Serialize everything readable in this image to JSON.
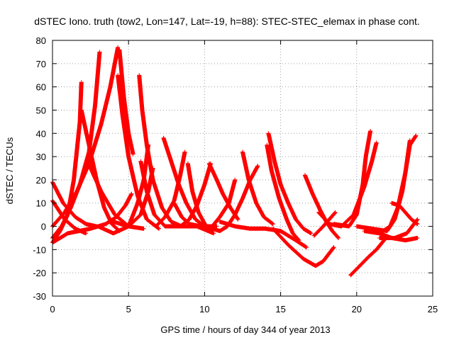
{
  "chart_data": {
    "type": "scatter",
    "title": "dSTEC Iono. truth (tow2, Lon=147, Lat=-19, h=88): STEC-STEC_elemax in phase cont.",
    "xlabel": "GPS time / hours of day 344 of year 2013",
    "ylabel": "dSTEC  / TECUs",
    "xlim": [
      0,
      25
    ],
    "ylim": [
      -30,
      80
    ],
    "xticks": [
      0,
      5,
      10,
      15,
      20,
      25
    ],
    "yticks": [
      -30,
      -20,
      -10,
      0,
      10,
      20,
      30,
      40,
      50,
      60,
      70,
      80
    ],
    "xtick_labels": [
      "0",
      "5",
      "10",
      "15",
      "20",
      "25"
    ],
    "ytick_labels": [
      "-30",
      "-20",
      "-10",
      "0",
      "10",
      "20",
      "30",
      "40",
      "50",
      "60",
      "70",
      "80"
    ],
    "grid": true,
    "marker": "plus",
    "color": "#ff0000",
    "series": [
      {
        "points": [
          [
            0,
            -7
          ],
          [
            0.5,
            -2
          ],
          [
            1.0,
            5
          ],
          [
            1.4,
            20
          ],
          [
            1.8,
            45
          ],
          [
            1.9,
            62
          ]
        ]
      },
      {
        "points": [
          [
            0,
            -5
          ],
          [
            0.6,
            0
          ],
          [
            1.2,
            8
          ],
          [
            1.8,
            18
          ],
          [
            2.4,
            32
          ],
          [
            2.8,
            52
          ],
          [
            3.1,
            75
          ]
        ]
      },
      {
        "points": [
          [
            0,
            0
          ],
          [
            0.8,
            6
          ],
          [
            1.6,
            15
          ],
          [
            2.4,
            27
          ],
          [
            3.2,
            44
          ],
          [
            3.8,
            60
          ],
          [
            4.3,
            77
          ]
        ]
      },
      {
        "points": [
          [
            0,
            19
          ],
          [
            0.7,
            10
          ],
          [
            1.5,
            4
          ],
          [
            2.2,
            1
          ],
          [
            2.9,
            0
          ]
        ]
      },
      {
        "points": [
          [
            0,
            11
          ],
          [
            0.8,
            3
          ],
          [
            1.5,
            -1
          ],
          [
            2.2,
            -3
          ]
        ]
      },
      {
        "points": [
          [
            0,
            -7
          ],
          [
            1.0,
            -3
          ],
          [
            2.5,
            -1
          ],
          [
            3.5,
            1
          ],
          [
            4.2,
            4
          ],
          [
            4.8,
            9
          ],
          [
            5.2,
            14
          ]
        ]
      },
      {
        "points": [
          [
            1.9,
            50
          ],
          [
            2.4,
            35
          ],
          [
            2.9,
            20
          ],
          [
            3.4,
            8
          ],
          [
            3.9,
            1
          ],
          [
            4.4,
            -2
          ]
        ]
      },
      {
        "points": [
          [
            2.3,
            28
          ],
          [
            3.2,
            15
          ],
          [
            4.1,
            5
          ],
          [
            5.0,
            0
          ],
          [
            6.0,
            -1
          ]
        ]
      },
      {
        "points": [
          [
            4.4,
            76
          ],
          [
            4.7,
            55
          ],
          [
            5.0,
            40
          ],
          [
            5.3,
            31
          ]
        ]
      },
      {
        "points": [
          [
            4.3,
            65
          ],
          [
            4.6,
            48
          ],
          [
            5.0,
            30
          ],
          [
            5.6,
            13
          ],
          [
            6.2,
            3
          ],
          [
            7.0,
            -1
          ]
        ]
      },
      {
        "points": [
          [
            5.7,
            65
          ],
          [
            5.9,
            50
          ],
          [
            6.2,
            35
          ],
          [
            6.6,
            20
          ],
          [
            7.2,
            8
          ],
          [
            7.8,
            2
          ],
          [
            8.5,
            0
          ]
        ]
      },
      {
        "points": [
          [
            3.0,
            0
          ],
          [
            4.0,
            -3
          ],
          [
            5.0,
            0
          ],
          [
            5.6,
            10
          ],
          [
            6.0,
            20
          ],
          [
            6.3,
            35
          ]
        ]
      },
      {
        "points": [
          [
            4.0,
            2
          ],
          [
            5.0,
            0
          ],
          [
            5.8,
            5
          ],
          [
            6.3,
            15
          ],
          [
            6.6,
            25
          ]
        ]
      },
      {
        "points": [
          [
            5.8,
            28
          ],
          [
            6.2,
            15
          ],
          [
            6.7,
            5
          ],
          [
            7.4,
            0
          ],
          [
            8.5,
            0
          ],
          [
            9.5,
            0
          ],
          [
            10.6,
            -3
          ]
        ]
      },
      {
        "points": [
          [
            7.3,
            38
          ],
          [
            7.8,
            28
          ],
          [
            8.3,
            18
          ],
          [
            8.8,
            10
          ],
          [
            9.4,
            3
          ],
          [
            10.0,
            0
          ]
        ]
      },
      {
        "points": [
          [
            6.8,
            0
          ],
          [
            7.4,
            4
          ],
          [
            8.0,
            11
          ],
          [
            8.4,
            22
          ],
          [
            8.7,
            32
          ]
        ]
      },
      {
        "points": [
          [
            8.0,
            10
          ],
          [
            8.5,
            4
          ],
          [
            9.0,
            1
          ],
          [
            9.8,
            0
          ],
          [
            10.5,
            0
          ]
        ]
      },
      {
        "points": [
          [
            8.9,
            27
          ],
          [
            9.2,
            15
          ],
          [
            9.6,
            6
          ],
          [
            10.1,
            0
          ],
          [
            10.8,
            0
          ]
        ]
      },
      {
        "points": [
          [
            8.4,
            0
          ],
          [
            9.0,
            3
          ],
          [
            9.5,
            9
          ],
          [
            10.0,
            18
          ],
          [
            10.4,
            27
          ]
        ]
      },
      {
        "points": [
          [
            10.3,
            27
          ],
          [
            10.8,
            20
          ],
          [
            11.2,
            14
          ],
          [
            11.7,
            8
          ],
          [
            12.2,
            3
          ]
        ]
      },
      {
        "points": [
          [
            10.5,
            0
          ],
          [
            11.0,
            4
          ],
          [
            11.6,
            10
          ],
          [
            12.0,
            20
          ]
        ]
      },
      {
        "points": [
          [
            10.0,
            0
          ],
          [
            11.0,
            -2
          ],
          [
            11.5,
            0
          ],
          [
            12.0,
            5
          ],
          [
            12.5,
            12
          ],
          [
            13.0,
            20
          ],
          [
            13.5,
            26
          ]
        ]
      },
      {
        "points": [
          [
            12.5,
            32
          ],
          [
            12.9,
            20
          ],
          [
            13.4,
            10
          ],
          [
            13.9,
            4
          ],
          [
            14.5,
            1
          ]
        ]
      },
      {
        "points": [
          [
            11.0,
            2
          ],
          [
            12.0,
            0
          ],
          [
            13.0,
            -1
          ],
          [
            14.0,
            -1
          ],
          [
            15.0,
            -2
          ],
          [
            16.0,
            -6
          ],
          [
            16.7,
            -9
          ]
        ]
      },
      {
        "points": [
          [
            14.2,
            40
          ],
          [
            14.6,
            28
          ],
          [
            15.0,
            18
          ],
          [
            15.5,
            10
          ],
          [
            16.0,
            3
          ],
          [
            16.5,
            -1
          ],
          [
            17.0,
            -3
          ]
        ]
      },
      {
        "points": [
          [
            14.1,
            35
          ],
          [
            14.4,
            24
          ],
          [
            14.9,
            12
          ],
          [
            15.4,
            3
          ],
          [
            15.8,
            -3
          ],
          [
            16.2,
            -6
          ]
        ]
      },
      {
        "points": [
          [
            14.5,
            -1
          ],
          [
            15.5,
            -8
          ],
          [
            16.5,
            -14
          ],
          [
            17.3,
            -17
          ],
          [
            17.8,
            -15
          ],
          [
            18.5,
            -9
          ]
        ]
      },
      {
        "points": [
          [
            16.6,
            22
          ],
          [
            17.1,
            14
          ],
          [
            17.6,
            7
          ],
          [
            18.0,
            2
          ],
          [
            18.4,
            -2
          ],
          [
            18.8,
            -5
          ]
        ]
      },
      {
        "points": [
          [
            17.2,
            -4
          ],
          [
            17.8,
            0
          ],
          [
            18.2,
            3
          ],
          [
            18.6,
            6
          ]
        ]
      },
      {
        "points": [
          [
            18.5,
            1
          ],
          [
            19.5,
            0
          ],
          [
            20.0,
            5
          ],
          [
            20.4,
            18
          ],
          [
            20.6,
            30
          ],
          [
            20.9,
            41
          ]
        ]
      },
      {
        "points": [
          [
            17.5,
            6
          ],
          [
            18.2,
            1
          ],
          [
            19.0,
            0
          ],
          [
            19.8,
            5
          ],
          [
            20.5,
            17
          ],
          [
            21.0,
            28
          ],
          [
            21.3,
            36
          ]
        ]
      },
      {
        "points": [
          [
            19.6,
            -21
          ],
          [
            20.2,
            -17
          ],
          [
            20.8,
            -13
          ],
          [
            21.3,
            -10
          ],
          [
            21.8,
            -6
          ]
        ]
      },
      {
        "points": [
          [
            20.0,
            0
          ],
          [
            21.0,
            -1
          ],
          [
            22.0,
            -2
          ],
          [
            22.5,
            3
          ],
          [
            23.0,
            15
          ],
          [
            23.5,
            35
          ],
          [
            23.9,
            39
          ]
        ]
      },
      {
        "points": [
          [
            20.5,
            -2
          ],
          [
            21.5,
            -3
          ],
          [
            22.2,
            0
          ],
          [
            22.7,
            8
          ],
          [
            23.2,
            23
          ],
          [
            23.5,
            37
          ]
        ]
      },
      {
        "points": [
          [
            21.5,
            -3
          ],
          [
            22.3,
            -5
          ],
          [
            23.2,
            -6
          ],
          [
            24.0,
            -5
          ]
        ]
      },
      {
        "points": [
          [
            22.3,
            10
          ],
          [
            22.8,
            9
          ],
          [
            23.2,
            6
          ],
          [
            23.6,
            3
          ],
          [
            24.0,
            1
          ]
        ]
      },
      {
        "points": [
          [
            21.5,
            -5
          ],
          [
            22.5,
            -5
          ],
          [
            23.3,
            -3
          ],
          [
            24.0,
            3
          ]
        ]
      }
    ]
  }
}
